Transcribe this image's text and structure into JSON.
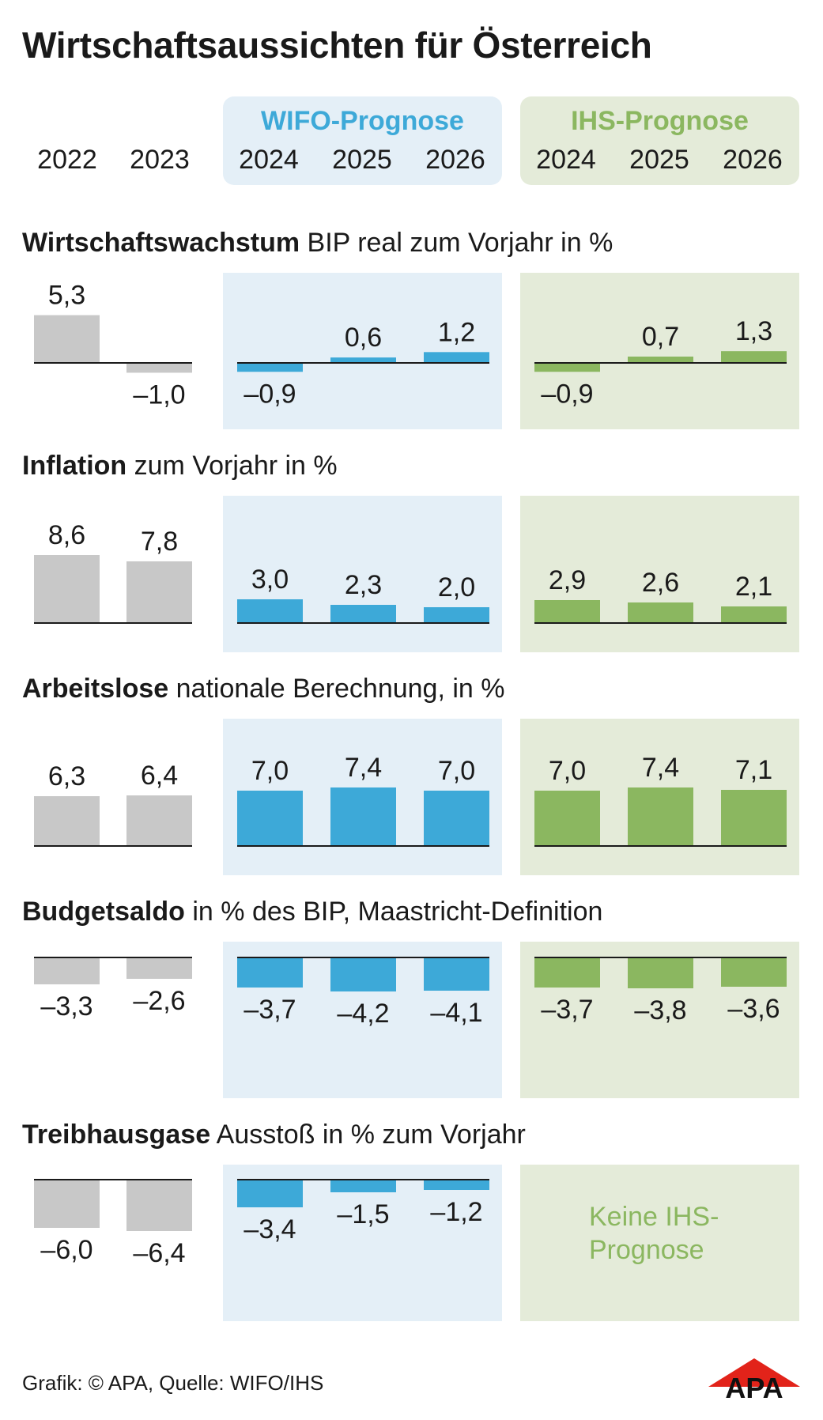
{
  "title": "Wirtschaftsaussichten für Österreich",
  "header": {
    "wifo_label": "WIFO-Prognose",
    "ihs_label": "IHS-Prognose",
    "years_actual": [
      "2022",
      "2023"
    ],
    "years_wifo": [
      "2024",
      "2025",
      "2026"
    ],
    "years_ihs": [
      "2024",
      "2025",
      "2026"
    ]
  },
  "colors": {
    "actual": "#c8c8c8",
    "wifo": "#3da9d8",
    "ihs": "#8bb760",
    "wifo_panel": "#e4eff7",
    "ihs_panel": "#e4ebd9",
    "wifo_text": "#3da9d8",
    "ihs_text": "#8bb760"
  },
  "sections": [
    {
      "bold": "Wirtschaftswachstum",
      "rest": " BIP real zum Vorjahr in %"
    },
    {
      "bold": "Inflation",
      "rest": " zum Vorjahr in %"
    },
    {
      "bold": "Arbeitslose",
      "rest": " nationale Berechnung, in %"
    },
    {
      "bold": "Budgetsaldo",
      "rest": " in % des BIP, Maastricht-Definition"
    },
    {
      "bold": "Treibhausgase",
      "rest": " Ausstoß in % zum Vorjahr"
    }
  ],
  "no_ihs_text_line1": "Keine IHS-",
  "no_ihs_text_line2": "Prognose",
  "footer": "Grafik: © APA, Quelle: WIFO/IHS",
  "logo_text": "APA",
  "chart_data": [
    {
      "type": "bar",
      "title": "Wirtschaftswachstum BIP real zum Vorjahr in %",
      "categories": [
        "2022",
        "2023",
        "2024",
        "2025",
        "2026"
      ],
      "series": [
        {
          "name": "",
          "x": [
            "2022",
            "2023"
          ],
          "values": [
            5.3,
            -1.0
          ],
          "labels": [
            "5,3",
            "–1,0"
          ]
        },
        {
          "name": "WIFO-Prognose",
          "x": [
            "2024",
            "2025",
            "2026"
          ],
          "values": [
            -0.9,
            0.6,
            1.2
          ],
          "labels": [
            "–0,9",
            "0,6",
            "1,2"
          ]
        },
        {
          "name": "IHS-Prognose",
          "x": [
            "2024",
            "2025",
            "2026"
          ],
          "values": [
            -0.9,
            0.7,
            1.3
          ],
          "labels": [
            "–0,9",
            "0,7",
            "1,3"
          ]
        }
      ]
    },
    {
      "type": "bar",
      "title": "Inflation zum Vorjahr in %",
      "categories": [
        "2022",
        "2023",
        "2024",
        "2025",
        "2026"
      ],
      "series": [
        {
          "name": "",
          "x": [
            "2022",
            "2023"
          ],
          "values": [
            8.6,
            7.8
          ],
          "labels": [
            "8,6",
            "7,8"
          ]
        },
        {
          "name": "WIFO-Prognose",
          "x": [
            "2024",
            "2025",
            "2026"
          ],
          "values": [
            3.0,
            2.3,
            2.0
          ],
          "labels": [
            "3,0",
            "2,3",
            "2,0"
          ]
        },
        {
          "name": "IHS-Prognose",
          "x": [
            "2024",
            "2025",
            "2026"
          ],
          "values": [
            2.9,
            2.6,
            2.1
          ],
          "labels": [
            "2,9",
            "2,6",
            "2,1"
          ]
        }
      ]
    },
    {
      "type": "bar",
      "title": "Arbeitslose nationale Berechnung, in %",
      "categories": [
        "2022",
        "2023",
        "2024",
        "2025",
        "2026"
      ],
      "series": [
        {
          "name": "",
          "x": [
            "2022",
            "2023"
          ],
          "values": [
            6.3,
            6.4
          ],
          "labels": [
            "6,3",
            "6,4"
          ]
        },
        {
          "name": "WIFO-Prognose",
          "x": [
            "2024",
            "2025",
            "2026"
          ],
          "values": [
            7.0,
            7.4,
            7.0
          ],
          "labels": [
            "7,0",
            "7,4",
            "7,0"
          ]
        },
        {
          "name": "IHS-Prognose",
          "x": [
            "2024",
            "2025",
            "2026"
          ],
          "values": [
            7.0,
            7.4,
            7.1
          ],
          "labels": [
            "7,0",
            "7,4",
            "7,1"
          ]
        }
      ]
    },
    {
      "type": "bar",
      "title": "Budgetsaldo in % des BIP, Maastricht-Definition",
      "categories": [
        "2022",
        "2023",
        "2024",
        "2025",
        "2026"
      ],
      "series": [
        {
          "name": "",
          "x": [
            "2022",
            "2023"
          ],
          "values": [
            -3.3,
            -2.6
          ],
          "labels": [
            "–3,3",
            "–2,6"
          ]
        },
        {
          "name": "WIFO-Prognose",
          "x": [
            "2024",
            "2025",
            "2026"
          ],
          "values": [
            -3.7,
            -4.2,
            -4.1
          ],
          "labels": [
            "–3,7",
            "–4,2",
            "–4,1"
          ]
        },
        {
          "name": "IHS-Prognose",
          "x": [
            "2024",
            "2025",
            "2026"
          ],
          "values": [
            -3.7,
            -3.8,
            -3.6
          ],
          "labels": [
            "–3,7",
            "–3,8",
            "–3,6"
          ]
        }
      ]
    },
    {
      "type": "bar",
      "title": "Treibhausgase Ausstoß in % zum Vorjahr",
      "categories": [
        "2022",
        "2023",
        "2024",
        "2025",
        "2026"
      ],
      "series": [
        {
          "name": "",
          "x": [
            "2022",
            "2023"
          ],
          "values": [
            -6.0,
            -6.4
          ],
          "labels": [
            "–6,0",
            "–6,4"
          ]
        },
        {
          "name": "WIFO-Prognose",
          "x": [
            "2024",
            "2025",
            "2026"
          ],
          "values": [
            -3.4,
            -1.5,
            -1.2
          ],
          "labels": [
            "–3,4",
            "–1,5",
            "–1,2"
          ]
        }
      ]
    }
  ]
}
